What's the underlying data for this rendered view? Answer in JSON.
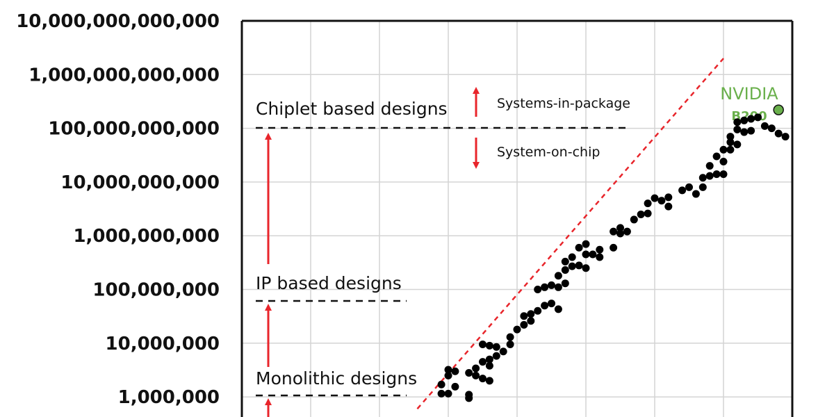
{
  "chart_data": {
    "type": "scatter",
    "title": "",
    "xlabel": "",
    "ylabel": "",
    "yscale": "log",
    "ylim": [
      1000000,
      10000000000000
    ],
    "xlim": [
      0,
      8
    ],
    "grid": true,
    "y_ticks": [
      {
        "value": 1000000,
        "label": "1,000,000"
      },
      {
        "value": 10000000,
        "label": "10,000,000"
      },
      {
        "value": 100000000,
        "label": "100,000,000"
      },
      {
        "value": 1000000000,
        "label": "1,000,000,000"
      },
      {
        "value": 10000000000,
        "label": "10,000,000,000"
      },
      {
        "value": 100000000000,
        "label": "100,000,000,000"
      },
      {
        "value": 1000000000000,
        "label": "1,000,000,000,000"
      },
      {
        "value": 10000000000000,
        "label": "10,000,000,000,000"
      }
    ],
    "trend_line": {
      "color": "#e8252b",
      "style": "dashed",
      "x": [
        2.55,
        7.0
      ],
      "y": [
        600000,
        2000000000000
      ]
    },
    "series": [
      {
        "color": "#000000",
        "points": [
          [
            2.9,
            1150000
          ],
          [
            3.0,
            1150000
          ],
          [
            3.3,
            1100000
          ],
          [
            3.3,
            950000
          ],
          [
            2.9,
            1700000
          ],
          [
            3.1,
            1550000
          ],
          [
            3.0,
            2500000
          ],
          [
            3.0,
            3200000
          ],
          [
            3.1,
            3000000
          ],
          [
            3.3,
            2800000
          ],
          [
            3.4,
            2500000
          ],
          [
            3.5,
            2200000
          ],
          [
            3.6,
            2000000
          ],
          [
            3.6,
            3800000
          ],
          [
            3.4,
            3400000
          ],
          [
            3.5,
            4500000
          ],
          [
            3.6,
            5000000
          ],
          [
            3.7,
            5800000
          ],
          [
            3.5,
            9500000
          ],
          [
            3.6,
            9000000
          ],
          [
            3.7,
            8500000
          ],
          [
            3.8,
            7000000
          ],
          [
            3.9,
            9500000
          ],
          [
            3.9,
            13000000
          ],
          [
            4.0,
            18000000
          ],
          [
            4.1,
            22000000
          ],
          [
            4.2,
            26000000
          ],
          [
            4.1,
            32000000
          ],
          [
            4.2,
            35000000
          ],
          [
            4.3,
            40000000
          ],
          [
            4.4,
            50000000
          ],
          [
            4.5,
            55000000
          ],
          [
            4.6,
            43000000
          ],
          [
            4.3,
            100000000
          ],
          [
            4.4,
            110000000
          ],
          [
            4.5,
            120000000
          ],
          [
            4.6,
            110000000
          ],
          [
            4.7,
            130000000
          ],
          [
            4.6,
            180000000
          ],
          [
            4.7,
            230000000
          ],
          [
            4.8,
            270000000
          ],
          [
            4.9,
            280000000
          ],
          [
            5.0,
            250000000
          ],
          [
            4.7,
            330000000
          ],
          [
            4.8,
            400000000
          ],
          [
            5.0,
            450000000
          ],
          [
            4.9,
            600000000
          ],
          [
            5.0,
            700000000
          ],
          [
            5.1,
            450000000
          ],
          [
            5.2,
            400000000
          ],
          [
            5.2,
            550000000
          ],
          [
            5.4,
            600000000
          ],
          [
            5.5,
            1100000000
          ],
          [
            5.4,
            1200000000
          ],
          [
            5.5,
            1400000000
          ],
          [
            5.6,
            1200000000
          ],
          [
            5.7,
            2000000000
          ],
          [
            5.8,
            2500000000
          ],
          [
            5.9,
            2600000000
          ],
          [
            5.9,
            4000000000
          ],
          [
            6.0,
            5000000000
          ],
          [
            6.1,
            4500000000
          ],
          [
            6.2,
            5200000000
          ],
          [
            6.2,
            3500000000
          ],
          [
            6.4,
            7000000000
          ],
          [
            6.5,
            8000000000
          ],
          [
            6.6,
            6000000000
          ],
          [
            6.7,
            8000000000
          ],
          [
            6.7,
            12000000000
          ],
          [
            6.8,
            13000000000
          ],
          [
            6.9,
            14000000000
          ],
          [
            7.0,
            14000000000
          ],
          [
            7.0,
            24000000000
          ],
          [
            6.8,
            20000000000
          ],
          [
            6.9,
            30000000000
          ],
          [
            7.0,
            40000000000
          ],
          [
            7.1,
            40000000000
          ],
          [
            7.1,
            55000000000
          ],
          [
            7.2,
            50000000000
          ],
          [
            7.1,
            70000000000
          ],
          [
            7.3,
            85000000000
          ],
          [
            7.2,
            95000000000
          ],
          [
            7.4,
            90000000000
          ],
          [
            7.2,
            130000000000
          ],
          [
            7.3,
            140000000000
          ],
          [
            7.4,
            150000000000
          ],
          [
            7.5,
            160000000000
          ],
          [
            7.6,
            110000000000
          ],
          [
            7.7,
            100000000000
          ],
          [
            7.8,
            80000000000
          ],
          [
            7.9,
            70000000000
          ]
        ]
      },
      {
        "color": "#6ab04c",
        "points": [
          [
            7.8,
            220000000000
          ]
        ]
      }
    ],
    "annotations": {
      "chiplet": "Chiplet based designs",
      "ip": "IP based designs",
      "monolithic": "Monolithic designs",
      "sip": "Systems-in-package",
      "soc": "System-on-chip",
      "nvidia_name": "NVIDIA",
      "nvidia_model": "B200"
    },
    "colors": {
      "arrow": "#e8252b",
      "highlight": "#6ab04c",
      "grid": "#d4d4d4",
      "dots": "#000000"
    }
  }
}
